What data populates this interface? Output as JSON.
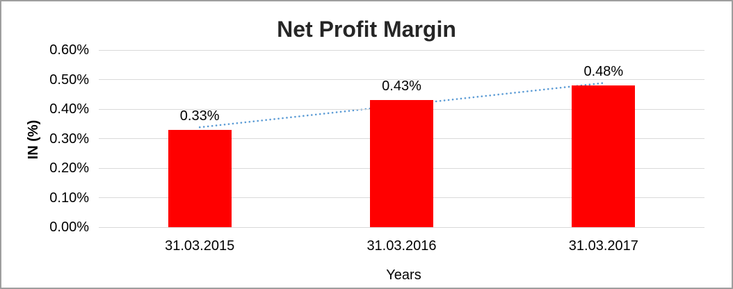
{
  "chart_data": {
    "type": "bar",
    "title": "Net Profit Margin",
    "xlabel": "Years",
    "ylabel": "IN (%)",
    "categories": [
      "31.03.2015",
      "31.03.2016",
      "31.03.2017"
    ],
    "values": [
      0.33,
      0.43,
      0.48
    ],
    "data_labels": [
      "0.33%",
      "0.43%",
      "0.48%"
    ],
    "ylim": [
      0,
      0.6
    ],
    "yticks": [
      {
        "value": 0.6,
        "label": "0.60%"
      },
      {
        "value": 0.5,
        "label": "0.50%"
      },
      {
        "value": 0.4,
        "label": "0.40%"
      },
      {
        "value": 0.3,
        "label": "0.30%"
      },
      {
        "value": 0.2,
        "label": "0.20%"
      },
      {
        "value": 0.1,
        "label": "0.10%"
      },
      {
        "value": 0.0,
        "label": "0.00%"
      }
    ],
    "grid": "horizontal",
    "legend": "none",
    "trendline": {
      "type": "linear",
      "style": "dotted",
      "start_value": 0.3383,
      "end_value": 0.4883
    },
    "colors": {
      "bar": "#FF0000",
      "trendline": "#5B9BD5",
      "gridline": "#D9D9D9",
      "title_text": "#262626",
      "axis_text": "#000000",
      "frame_border": "#9E9E9E"
    }
  }
}
